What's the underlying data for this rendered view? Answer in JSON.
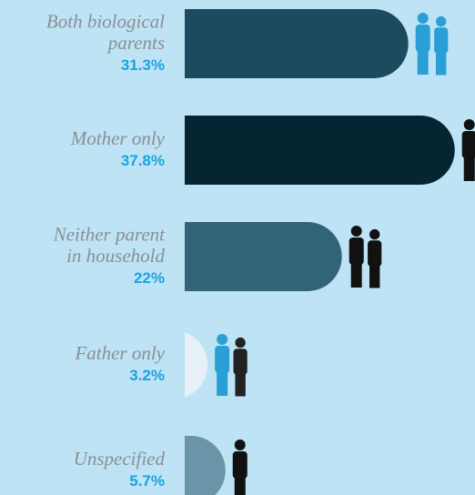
{
  "chart_data": {
    "type": "bar",
    "categories": [
      [
        "Both biological",
        "parents"
      ],
      [
        "Mother only"
      ],
      [
        "Neither parent",
        "in household"
      ],
      [
        "Father only"
      ],
      [
        "Unspecified"
      ]
    ],
    "values": [
      31.3,
      37.8,
      22,
      3.2,
      5.7
    ],
    "value_labels": [
      "31.3%",
      "37.8%",
      "22%",
      "3.2%",
      "5.7%"
    ],
    "colors": [
      "#1e4a5f",
      "#062533",
      "#336377",
      "#e5f1f6",
      "#6a95a8"
    ]
  }
}
